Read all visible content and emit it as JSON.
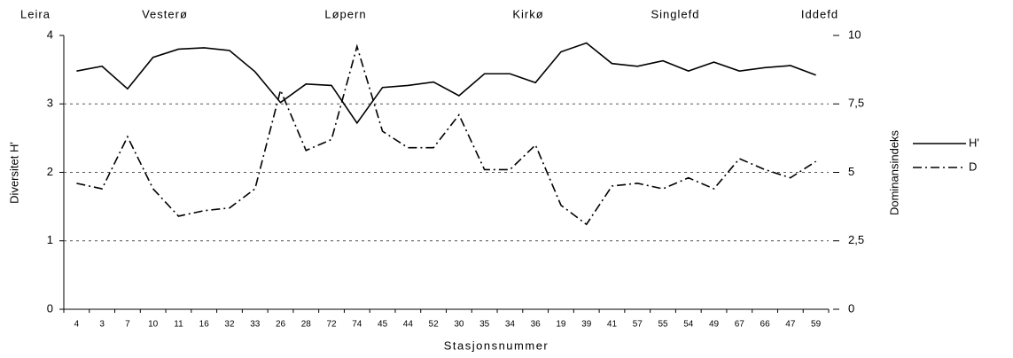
{
  "chart_data": {
    "type": "line",
    "annotations": [
      "Leira",
      "Vesterø",
      "Løpern",
      "Kirkø",
      "Singlefd",
      "Iddefd"
    ],
    "x_label": "Stasjonsnummer",
    "y_label": "Diversitet H'",
    "y2_label": "Dominansindeks",
    "categories": [
      "4",
      "3",
      "7",
      "10",
      "11",
      "16",
      "32",
      "33",
      "26",
      "28",
      "72",
      "74",
      "45",
      "44",
      "52",
      "30",
      "35",
      "34",
      "36",
      "19",
      "39",
      "41",
      "57",
      "55",
      "54",
      "49",
      "67",
      "66",
      "47",
      "59"
    ],
    "series": [
      {
        "name": "H'",
        "color": "#000000",
        "style": "solid",
        "values": [
          3.48,
          3.55,
          3.22,
          3.68,
          3.8,
          3.82,
          3.78,
          3.47,
          3.02,
          3.29,
          3.27,
          2.72,
          3.24,
          3.27,
          3.32,
          3.12,
          3.44,
          3.44,
          3.31,
          3.76,
          3.89,
          3.59,
          3.55,
          3.63,
          3.48,
          3.61,
          3.48,
          3.53,
          3.56,
          3.42
        ]
      },
      {
        "name": "D",
        "color": "#000000",
        "style": "dashdot",
        "axis": "y2",
        "values": [
          4.6,
          4.4,
          6.3,
          4.4,
          3.4,
          3.6,
          3.7,
          4.4,
          8.0,
          5.8,
          6.2,
          9.6,
          6.5,
          5.9,
          5.9,
          7.1,
          5.1,
          5.1,
          6.0,
          3.8,
          3.1,
          4.5,
          4.6,
          4.4,
          4.8,
          4.4,
          5.5,
          5.1,
          4.8,
          5.4
        ]
      }
    ],
    "ylim": [
      0,
      4
    ],
    "yticks": [
      0,
      1,
      2,
      3,
      4
    ],
    "y2lim": [
      0,
      10
    ],
    "y2ticks": [
      0,
      {
        "value": 2.5,
        "label": "2,5"
      },
      5,
      {
        "value": 7.5,
        "label": "7,5"
      },
      10
    ],
    "grid": true,
    "legend": "right"
  }
}
